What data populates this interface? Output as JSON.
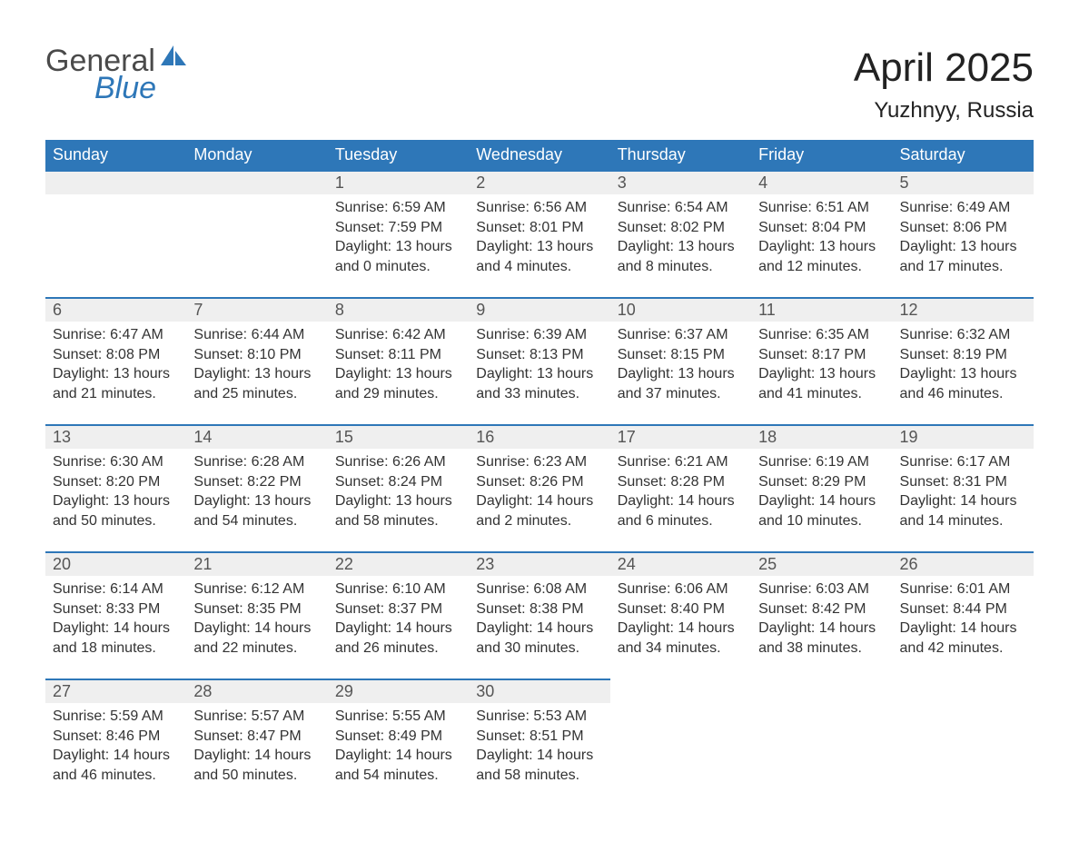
{
  "brand": {
    "word1": "General",
    "word2": "Blue",
    "sail_color": "#2e77b8",
    "word1_color": "#4a4a4a",
    "word2_color": "#2e77b8"
  },
  "title": "April 2025",
  "location": "Yuzhnyy, Russia",
  "colors": {
    "header_bg": "#2e77b8",
    "header_text": "#ffffff",
    "daynum_bg": "#efefef",
    "row_border": "#2e77b8",
    "body_text": "#333333",
    "page_bg": "#ffffff"
  },
  "typography": {
    "title_fontsize": 44,
    "location_fontsize": 24,
    "weekday_fontsize": 18,
    "daynum_fontsize": 18,
    "body_fontsize": 16
  },
  "weekdays": [
    "Sunday",
    "Monday",
    "Tuesday",
    "Wednesday",
    "Thursday",
    "Friday",
    "Saturday"
  ],
  "weeks": [
    [
      {
        "blank": true
      },
      {
        "blank": true
      },
      {
        "day": "1",
        "sunrise": "Sunrise: 6:59 AM",
        "sunset": "Sunset: 7:59 PM",
        "daylight": "Daylight: 13 hours and 0 minutes."
      },
      {
        "day": "2",
        "sunrise": "Sunrise: 6:56 AM",
        "sunset": "Sunset: 8:01 PM",
        "daylight": "Daylight: 13 hours and 4 minutes."
      },
      {
        "day": "3",
        "sunrise": "Sunrise: 6:54 AM",
        "sunset": "Sunset: 8:02 PM",
        "daylight": "Daylight: 13 hours and 8 minutes."
      },
      {
        "day": "4",
        "sunrise": "Sunrise: 6:51 AM",
        "sunset": "Sunset: 8:04 PM",
        "daylight": "Daylight: 13 hours and 12 minutes."
      },
      {
        "day": "5",
        "sunrise": "Sunrise: 6:49 AM",
        "sunset": "Sunset: 8:06 PM",
        "daylight": "Daylight: 13 hours and 17 minutes."
      }
    ],
    [
      {
        "day": "6",
        "sunrise": "Sunrise: 6:47 AM",
        "sunset": "Sunset: 8:08 PM",
        "daylight": "Daylight: 13 hours and 21 minutes."
      },
      {
        "day": "7",
        "sunrise": "Sunrise: 6:44 AM",
        "sunset": "Sunset: 8:10 PM",
        "daylight": "Daylight: 13 hours and 25 minutes."
      },
      {
        "day": "8",
        "sunrise": "Sunrise: 6:42 AM",
        "sunset": "Sunset: 8:11 PM",
        "daylight": "Daylight: 13 hours and 29 minutes."
      },
      {
        "day": "9",
        "sunrise": "Sunrise: 6:39 AM",
        "sunset": "Sunset: 8:13 PM",
        "daylight": "Daylight: 13 hours and 33 minutes."
      },
      {
        "day": "10",
        "sunrise": "Sunrise: 6:37 AM",
        "sunset": "Sunset: 8:15 PM",
        "daylight": "Daylight: 13 hours and 37 minutes."
      },
      {
        "day": "11",
        "sunrise": "Sunrise: 6:35 AM",
        "sunset": "Sunset: 8:17 PM",
        "daylight": "Daylight: 13 hours and 41 minutes."
      },
      {
        "day": "12",
        "sunrise": "Sunrise: 6:32 AM",
        "sunset": "Sunset: 8:19 PM",
        "daylight": "Daylight: 13 hours and 46 minutes."
      }
    ],
    [
      {
        "day": "13",
        "sunrise": "Sunrise: 6:30 AM",
        "sunset": "Sunset: 8:20 PM",
        "daylight": "Daylight: 13 hours and 50 minutes."
      },
      {
        "day": "14",
        "sunrise": "Sunrise: 6:28 AM",
        "sunset": "Sunset: 8:22 PM",
        "daylight": "Daylight: 13 hours and 54 minutes."
      },
      {
        "day": "15",
        "sunrise": "Sunrise: 6:26 AM",
        "sunset": "Sunset: 8:24 PM",
        "daylight": "Daylight: 13 hours and 58 minutes."
      },
      {
        "day": "16",
        "sunrise": "Sunrise: 6:23 AM",
        "sunset": "Sunset: 8:26 PM",
        "daylight": "Daylight: 14 hours and 2 minutes."
      },
      {
        "day": "17",
        "sunrise": "Sunrise: 6:21 AM",
        "sunset": "Sunset: 8:28 PM",
        "daylight": "Daylight: 14 hours and 6 minutes."
      },
      {
        "day": "18",
        "sunrise": "Sunrise: 6:19 AM",
        "sunset": "Sunset: 8:29 PM",
        "daylight": "Daylight: 14 hours and 10 minutes."
      },
      {
        "day": "19",
        "sunrise": "Sunrise: 6:17 AM",
        "sunset": "Sunset: 8:31 PM",
        "daylight": "Daylight: 14 hours and 14 minutes."
      }
    ],
    [
      {
        "day": "20",
        "sunrise": "Sunrise: 6:14 AM",
        "sunset": "Sunset: 8:33 PM",
        "daylight": "Daylight: 14 hours and 18 minutes."
      },
      {
        "day": "21",
        "sunrise": "Sunrise: 6:12 AM",
        "sunset": "Sunset: 8:35 PM",
        "daylight": "Daylight: 14 hours and 22 minutes."
      },
      {
        "day": "22",
        "sunrise": "Sunrise: 6:10 AM",
        "sunset": "Sunset: 8:37 PM",
        "daylight": "Daylight: 14 hours and 26 minutes."
      },
      {
        "day": "23",
        "sunrise": "Sunrise: 6:08 AM",
        "sunset": "Sunset: 8:38 PM",
        "daylight": "Daylight: 14 hours and 30 minutes."
      },
      {
        "day": "24",
        "sunrise": "Sunrise: 6:06 AM",
        "sunset": "Sunset: 8:40 PM",
        "daylight": "Daylight: 14 hours and 34 minutes."
      },
      {
        "day": "25",
        "sunrise": "Sunrise: 6:03 AM",
        "sunset": "Sunset: 8:42 PM",
        "daylight": "Daylight: 14 hours and 38 minutes."
      },
      {
        "day": "26",
        "sunrise": "Sunrise: 6:01 AM",
        "sunset": "Sunset: 8:44 PM",
        "daylight": "Daylight: 14 hours and 42 minutes."
      }
    ],
    [
      {
        "day": "27",
        "sunrise": "Sunrise: 5:59 AM",
        "sunset": "Sunset: 8:46 PM",
        "daylight": "Daylight: 14 hours and 46 minutes."
      },
      {
        "day": "28",
        "sunrise": "Sunrise: 5:57 AM",
        "sunset": "Sunset: 8:47 PM",
        "daylight": "Daylight: 14 hours and 50 minutes."
      },
      {
        "day": "29",
        "sunrise": "Sunrise: 5:55 AM",
        "sunset": "Sunset: 8:49 PM",
        "daylight": "Daylight: 14 hours and 54 minutes."
      },
      {
        "day": "30",
        "sunrise": "Sunrise: 5:53 AM",
        "sunset": "Sunset: 8:51 PM",
        "daylight": "Daylight: 14 hours and 58 minutes."
      },
      {
        "blank": true,
        "noborder": true
      },
      {
        "blank": true,
        "noborder": true
      },
      {
        "blank": true,
        "noborder": true
      }
    ]
  ]
}
